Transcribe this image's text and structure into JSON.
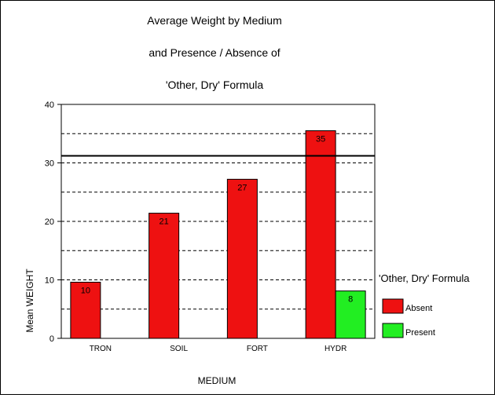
{
  "chart_data": {
    "type": "bar",
    "title_lines": [
      "Average Weight by Medium",
      "and Presence / Absence of",
      "'Other, Dry' Formula"
    ],
    "xlabel": "MEDIUM",
    "ylabel": "Mean WEIGHT",
    "ylim": [
      0,
      40
    ],
    "yticks": [
      0,
      10,
      20,
      30,
      40
    ],
    "grid": true,
    "categories": [
      "TRON",
      "SOIL",
      "FORT",
      "HYDR"
    ],
    "series": [
      {
        "name": "Absent",
        "color": "#ee1111",
        "values": [
          9.6,
          21.4,
          27.2,
          35.5
        ],
        "labels": [
          "10",
          "21",
          "27",
          "35"
        ]
      },
      {
        "name": "Present",
        "color": "#22ee22",
        "values": [
          null,
          null,
          null,
          8.1
        ],
        "labels": [
          "",
          "",
          "",
          "8"
        ]
      }
    ],
    "reference_line": 31.2,
    "legend": {
      "title": "'Other, Dry' Formula",
      "placement": "right"
    }
  }
}
